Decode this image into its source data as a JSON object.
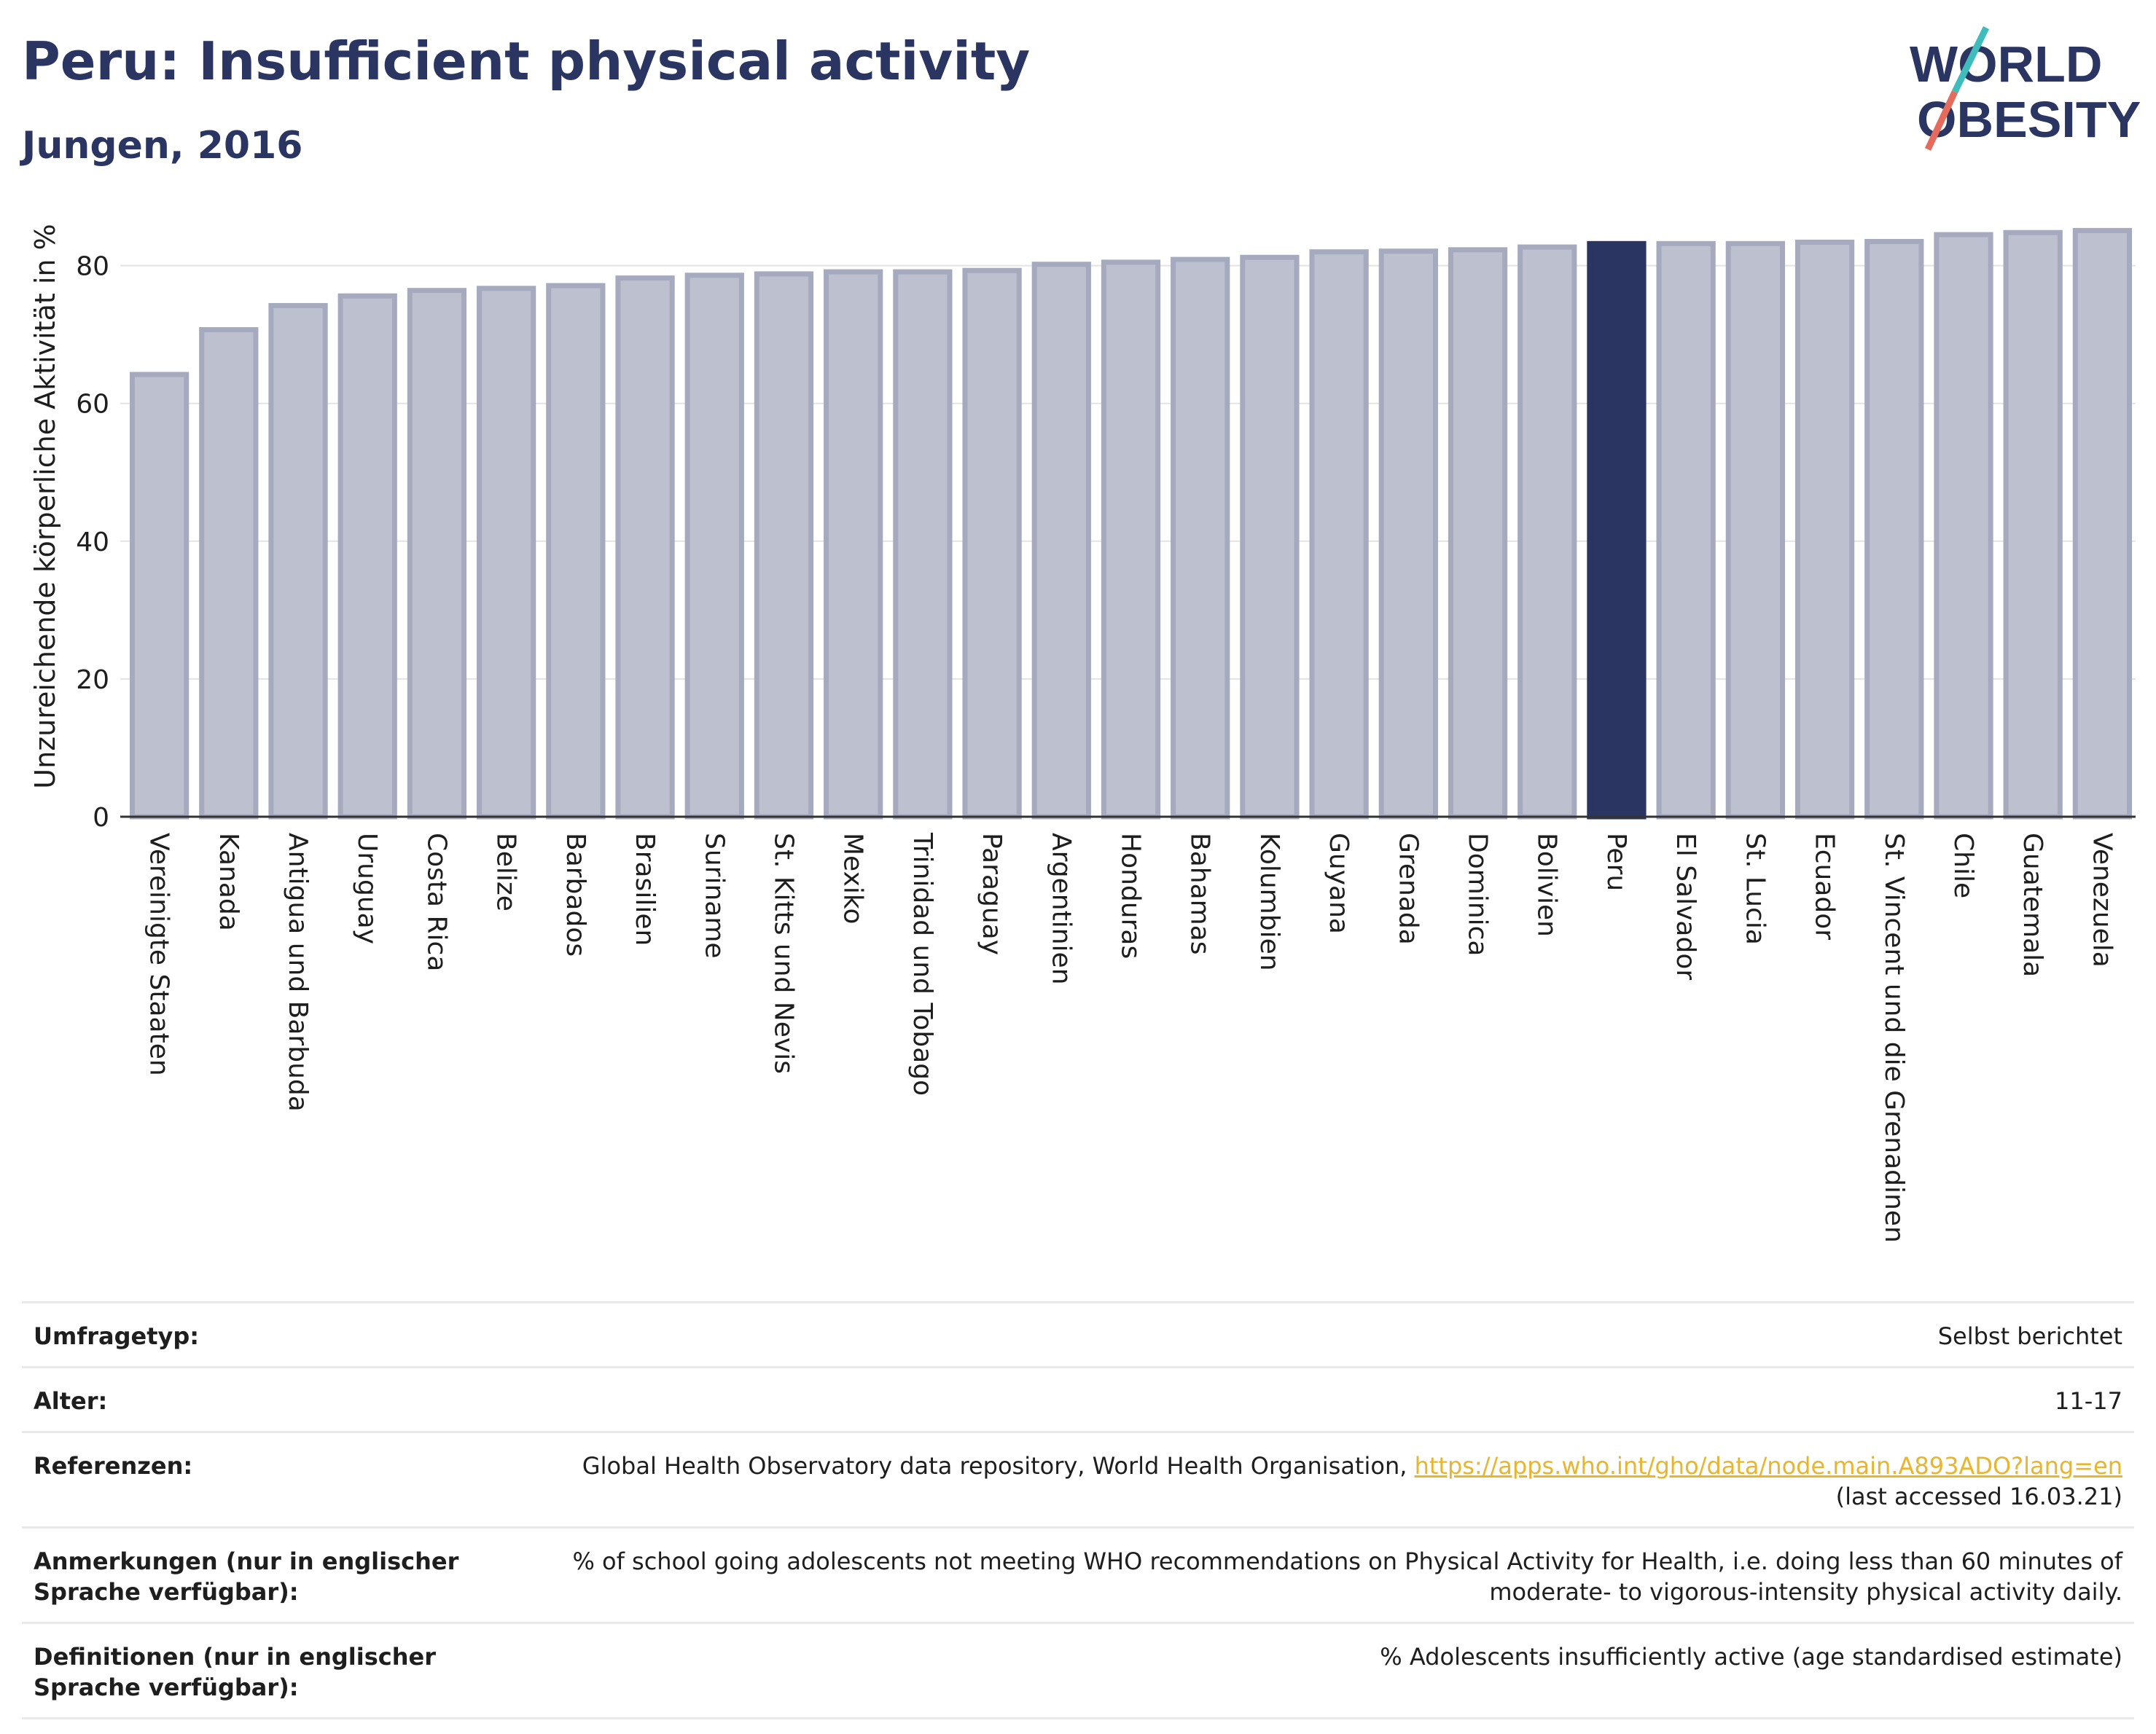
{
  "header": {
    "title": "Peru: Insufficient physical activity",
    "subtitle": "Jungen, 2016",
    "logo_text_line1": "WORLD",
    "logo_text_line2": "OBESITY"
  },
  "colors": {
    "highlight_bar": "#2a3561",
    "default_bar": "#bcc0cf",
    "default_bar_border": "#a5aabf",
    "title": "#2a3561",
    "logo_accent_teal": "#3fbcbc",
    "logo_accent_coral": "#e56b5d",
    "link": "#e8b52c"
  },
  "chart_data": {
    "type": "bar",
    "title": "Peru: Insufficient physical activity",
    "subtitle": "Jungen, 2016",
    "ylabel": "Unzureichende körperliche Aktivität in %",
    "xlabel": "",
    "ylim": [
      0,
      88
    ],
    "yticks": [
      0,
      20,
      40,
      60,
      80
    ],
    "grid": true,
    "highlight": "Peru",
    "categories": [
      "Vereinigte Staaten",
      "Kanada",
      "Antigua und Barbuda",
      "Uruguay",
      "Costa Rica",
      "Belize",
      "Barbados",
      "Brasilien",
      "Suriname",
      "St. Kitts und Nevis",
      "Mexiko",
      "Trinidad und Tobago",
      "Paraguay",
      "Argentinien",
      "Honduras",
      "Bahamas",
      "Kolumbien",
      "Guyana",
      "Grenada",
      "Dominica",
      "Bolivien",
      "Peru",
      "El Salvador",
      "St. Lucia",
      "Ecuador",
      "St. Vincent und die Grenadinen",
      "Chile",
      "Guatemala",
      "Venezuela"
    ],
    "values": [
      64.2,
      70.7,
      74.2,
      75.6,
      76.4,
      76.7,
      77.1,
      78.2,
      78.6,
      78.8,
      79.1,
      79.1,
      79.3,
      80.2,
      80.5,
      80.9,
      81.2,
      82.0,
      82.1,
      82.3,
      82.7,
      83.2,
      83.2,
      83.2,
      83.4,
      83.5,
      84.5,
      84.8,
      85.1
    ]
  },
  "info": {
    "rows": [
      {
        "label": "Umfragetyp:",
        "value": "Selbst berichtet"
      },
      {
        "label": "Alter:",
        "value": "11-17"
      },
      {
        "label": "Referenzen:",
        "value_prefix": "Global Health Observatory data repository, World Health Organisation, ",
        "link": "https://apps.who.int/gho/data/node.main.A893ADO?lang=en",
        "value_suffix": "(last accessed 16.03.21)"
      },
      {
        "label": "Anmerkungen (nur in englischer Sprache verfügbar):",
        "value": "% of school going adolescents not meeting WHO recommendations on Physical Activity for Health, i.e. doing less than 60 minutes of moderate- to vigorous-intensity physical activity daily."
      },
      {
        "label": "Definitionen (nur in englischer Sprache verfügbar):",
        "value": "% Adolescents insufficiently active (age standardised estimate)"
      }
    ]
  }
}
